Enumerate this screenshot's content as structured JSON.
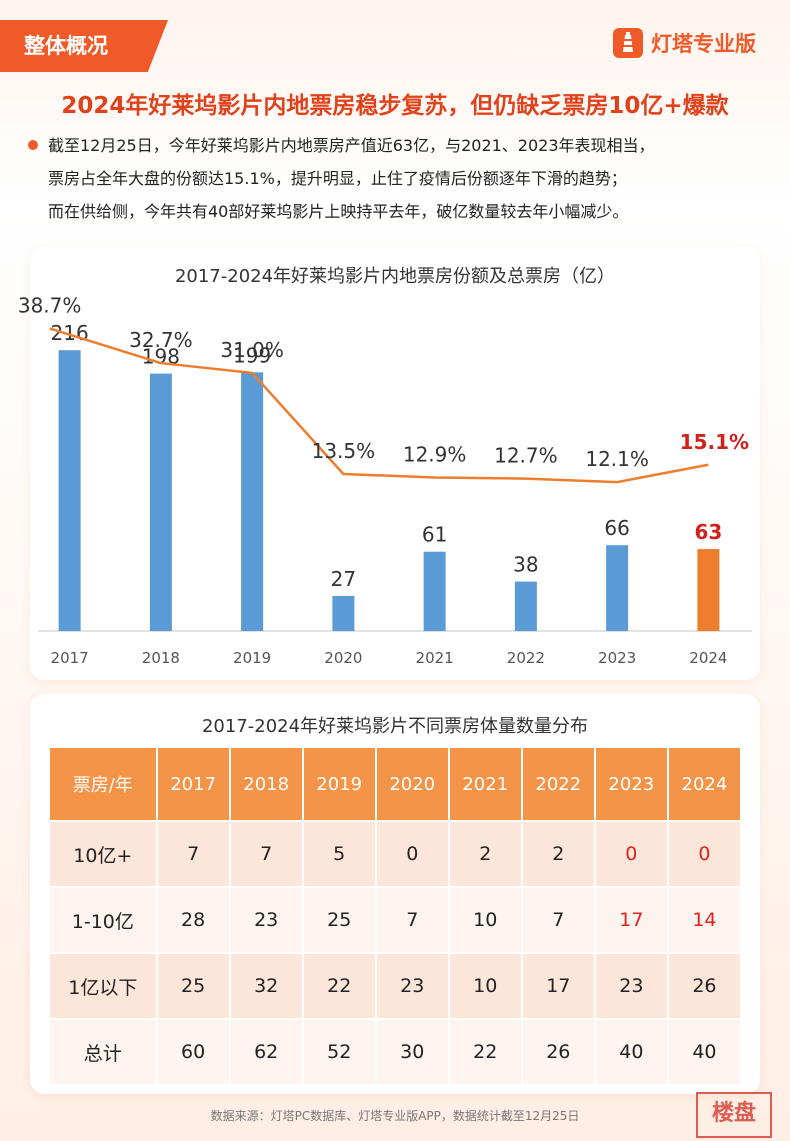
{
  "header": {
    "section_tag": "整体概况",
    "brand_name": "灯塔专业版",
    "headline": "2024年好莱坞影片内地票房稳步复苏，但仍缺乏票房10亿+爆款"
  },
  "summary": {
    "lines": [
      "截至12月25日，今年好莱坞影片内地票房产值近63亿，与2021、2023年表现相当，",
      "票房占全年大盘的份额达15.1%，提升明显，止住了疫情后份额逐年下滑的趋势；",
      "而在供给侧，今年共有40部好莱坞影片上映持平去年，破亿数量较去年小幅减少。"
    ]
  },
  "chart_data": [
    {
      "type": "bar+line",
      "title": "2017-2024年好莱坞影片内地票房份额及总票房（亿）",
      "categories": [
        "2017",
        "2018",
        "2019",
        "2020",
        "2021",
        "2022",
        "2023",
        "2024"
      ],
      "bar_series": {
        "name": "总票房（亿）",
        "values": [
          216,
          198,
          199,
          27,
          61,
          38,
          66,
          63
        ],
        "ylim": [
          0,
          250
        ]
      },
      "line_series": {
        "name": "份额",
        "values": [
          38.7,
          32.7,
          31.0,
          13.5,
          12.9,
          12.7,
          12.1,
          15.1
        ],
        "labels": [
          "38.7%",
          "32.7%",
          "31.0%",
          "13.5%",
          "12.9%",
          "12.7%",
          "12.1%",
          "15.1%"
        ],
        "ylim": [
          0,
          45
        ]
      },
      "highlight_index": 7,
      "colors": {
        "bar": "#5b9bd5",
        "bar_highlight": "#ef7d2e",
        "line": "#ef7d2e",
        "highlight_text": "#d0221c"
      }
    },
    {
      "type": "table",
      "title": "2017-2024年好莱坞影片不同票房体量数量分布",
      "header": [
        "票房/年",
        "2017",
        "2018",
        "2019",
        "2020",
        "2021",
        "2022",
        "2023",
        "2024"
      ],
      "rows": [
        {
          "label": "10亿+",
          "values": [
            7,
            7,
            5,
            0,
            2,
            2,
            0,
            0
          ],
          "highlight": [
            6,
            7
          ]
        },
        {
          "label": "1-10亿",
          "values": [
            28,
            23,
            25,
            7,
            10,
            7,
            17,
            14
          ],
          "highlight": [
            6,
            7
          ]
        },
        {
          "label": "1亿以下",
          "values": [
            25,
            32,
            22,
            23,
            10,
            17,
            23,
            26
          ],
          "highlight": []
        },
        {
          "label": "总计",
          "values": [
            60,
            62,
            52,
            30,
            22,
            26,
            40,
            40
          ],
          "highlight": []
        }
      ]
    }
  ],
  "footer": {
    "source": "数据来源：灯塔PC数据库、灯塔专业版APP，数据统计截至12月25日",
    "watermark": "楼盘"
  },
  "colors": {
    "accent": "#f05a28",
    "table_header": "#f39448"
  }
}
